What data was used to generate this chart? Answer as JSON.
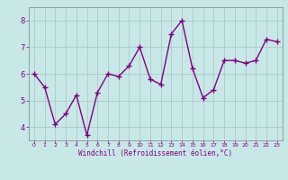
{
  "x": [
    0,
    1,
    2,
    3,
    4,
    5,
    6,
    7,
    8,
    9,
    10,
    11,
    12,
    13,
    14,
    15,
    16,
    17,
    18,
    19,
    20,
    21,
    22,
    23
  ],
  "y": [
    6.0,
    5.5,
    4.1,
    4.5,
    5.2,
    3.7,
    5.3,
    6.0,
    5.9,
    6.3,
    7.0,
    5.8,
    5.6,
    7.5,
    8.0,
    6.2,
    5.1,
    5.4,
    6.5,
    6.5,
    6.4,
    6.5,
    7.3,
    7.2
  ],
  "line_color": "#800080",
  "marker_color": "#800080",
  "bg_color": "#c8e8e8",
  "grid_color": "#b0c8c8",
  "xlabel": "Windchill (Refroidissement éolien,°C)",
  "xlim": [
    -0.5,
    23.5
  ],
  "ylim": [
    3.5,
    8.5
  ],
  "yticks": [
    4,
    5,
    6,
    7,
    8
  ],
  "xticks": [
    0,
    1,
    2,
    3,
    4,
    5,
    6,
    7,
    8,
    9,
    10,
    11,
    12,
    13,
    14,
    15,
    16,
    17,
    18,
    19,
    20,
    21,
    22,
    23
  ],
  "xlabel_color": "#800080",
  "tick_color": "#800080",
  "spine_color": "#808080",
  "line_width": 1.0,
  "marker_size": 4
}
